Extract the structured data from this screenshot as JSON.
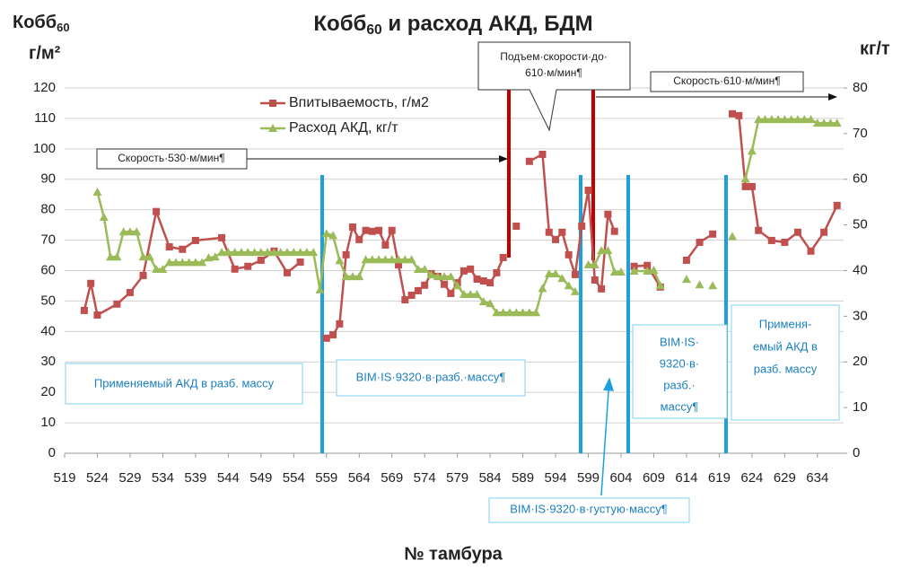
{
  "chart_data": {
    "type": "line",
    "title": [
      "Кобб",
      "60",
      " и расход АКД, БДМ"
    ],
    "ylabel": [
      "Кобб",
      "60",
      "г/м²"
    ],
    "y2label": "кг/т",
    "xlabel": "№ тамбура",
    "xlim": [
      519,
      638
    ],
    "xticks": [
      519,
      524,
      529,
      534,
      539,
      544,
      549,
      554,
      559,
      564,
      569,
      574,
      579,
      584,
      589,
      594,
      599,
      604,
      609,
      614,
      619,
      624,
      629,
      634
    ],
    "ylim": [
      0,
      120
    ],
    "yticks": [
      0,
      10,
      20,
      30,
      40,
      50,
      60,
      70,
      80,
      90,
      100,
      110,
      120
    ],
    "y2lim": [
      0,
      80
    ],
    "y2ticks": [
      0,
      10,
      20,
      30,
      40,
      50,
      60,
      70,
      80
    ],
    "grid": true,
    "series": [
      {
        "name": "Впитываемость, г/м2",
        "color": "#c0504d",
        "marker": "square",
        "x": [
          522,
          523,
          524,
          527,
          529,
          531,
          533,
          535,
          537,
          539,
          543,
          545,
          547,
          549,
          551,
          553,
          555,
          557,
          559,
          560,
          561,
          562,
          563,
          564,
          565,
          566,
          567,
          568,
          569,
          570,
          571,
          572,
          573,
          574,
          575,
          576,
          577,
          578,
          579,
          580,
          581,
          582,
          583,
          584,
          585,
          586,
          587,
          588,
          589,
          590,
          592,
          593,
          594,
          595,
          596,
          597,
          598,
          599,
          600,
          601,
          602,
          603,
          605,
          606,
          608,
          610,
          612,
          614,
          616,
          618,
          620,
          621,
          622,
          623,
          624,
          625,
          627,
          629,
          631,
          633,
          635,
          637
        ],
        "values": [
          46.9,
          55.8,
          45.4,
          49,
          52.8,
          58.4,
          79.4,
          67.8,
          67,
          69.9,
          70.8,
          60.5,
          61.4,
          63.4,
          66.4,
          59.3,
          62.8,
          null,
          37.8,
          38.9,
          42.5,
          65.2,
          74.3,
          70.2,
          73.2,
          72.9,
          73.2,
          68.4,
          73.2,
          61.9,
          50.4,
          51.9,
          53.4,
          55.2,
          59,
          58.1,
          55.5,
          52.5,
          56,
          59.9,
          60.5,
          57.2,
          56.6,
          56,
          59.3,
          64.3,
          null,
          74.6,
          null,
          95.9,
          98.2,
          72.6,
          70.2,
          72.6,
          65.2,
          58.7,
          74.6,
          86.4,
          56.9,
          54,
          78.5,
          72.9,
          null,
          61.4,
          61.7,
          54.6,
          null,
          63.4,
          69.3,
          72,
          null,
          111.5,
          110.9,
          87.6,
          87.6,
          73.2,
          69.9,
          69.3,
          72.6,
          66.4,
          72.6,
          81.4
        ]
      },
      {
        "name": "Расход АКД, кг/т",
        "color": "#9bbb59",
        "marker": "triangle",
        "axis": "y2",
        "x": [
          524,
          525,
          526,
          527,
          528,
          529,
          530,
          531,
          532,
          533,
          534,
          535,
          536,
          537,
          538,
          539,
          540,
          541,
          542,
          543,
          544,
          545,
          546,
          547,
          548,
          549,
          550,
          551,
          552,
          553,
          554,
          555,
          556,
          557,
          558,
          559,
          560,
          561,
          562,
          563,
          564,
          565,
          566,
          567,
          568,
          569,
          570,
          571,
          572,
          573,
          574,
          575,
          576,
          577,
          578,
          579,
          580,
          581,
          582,
          583,
          584,
          585,
          586,
          587,
          588,
          589,
          590,
          591,
          592,
          593,
          594,
          595,
          596,
          597,
          598,
          599,
          600,
          601,
          602,
          603,
          604,
          605,
          606,
          608,
          609,
          610,
          612,
          614,
          615,
          616,
          617,
          618,
          620,
          621,
          622,
          623,
          624,
          625,
          626,
          627,
          628,
          629,
          630,
          631,
          632,
          633,
          634,
          635,
          636,
          637
        ],
        "values": [
          57.2,
          51.7,
          43,
          43,
          48.5,
          48.5,
          48.5,
          43,
          43,
          40.3,
          40.3,
          41.8,
          41.8,
          41.8,
          41.8,
          41.8,
          41.8,
          42.8,
          43,
          44,
          44,
          44,
          44,
          44,
          44,
          44,
          44,
          44,
          44,
          44,
          44,
          44,
          44,
          44,
          35.8,
          48.1,
          47.7,
          42.2,
          38.7,
          38.7,
          38.7,
          42.4,
          42.4,
          42.4,
          42.4,
          42.4,
          42.4,
          42.4,
          42.4,
          40.3,
          40.3,
          39.1,
          38.7,
          38.7,
          38.7,
          36.7,
          34.8,
          34.8,
          34.8,
          33.2,
          32.8,
          30.8,
          30.8,
          30.8,
          30.8,
          30.8,
          30.8,
          30.8,
          36.1,
          39.3,
          39.3,
          38.3,
          36.7,
          35.4,
          null,
          41.3,
          41.3,
          44.4,
          44.4,
          39.7,
          39.7,
          null,
          39.9,
          39.9,
          40.1,
          36.7,
          null,
          38.1,
          null,
          36.9,
          null,
          36.7,
          null,
          47.5,
          null,
          60.1,
          66.2,
          73.1,
          73.1,
          73.1,
          73.1,
          73.1,
          73.1,
          73.1,
          73.1,
          73.1,
          72.3,
          72.3,
          72.3,
          72.3
        ]
      }
    ],
    "annotations": [
      {
        "lines": [
          "Скорость·530·м/мин¶"
        ]
      },
      {
        "lines": [
          "Подъем·скорости·до·",
          "610·м/мин¶"
        ]
      },
      {
        "lines": [
          "Скорость·610·м/мин¶"
        ]
      },
      {
        "lines": [
          "Применяемый АКД в разб. массу"
        ]
      },
      {
        "lines": [
          "BIM·IS·9320·в·разб.·массу¶"
        ]
      },
      {
        "lines": [
          "BIM·IS·",
          "9320·в·",
          "разб.·",
          "массу¶"
        ]
      },
      {
        "lines": [
          "Применя-",
          "емый АКД в",
          "разб. массу"
        ]
      },
      {
        "lines": [
          "BIM·IS·9320·в·густую·массу¶"
        ]
      }
    ]
  }
}
